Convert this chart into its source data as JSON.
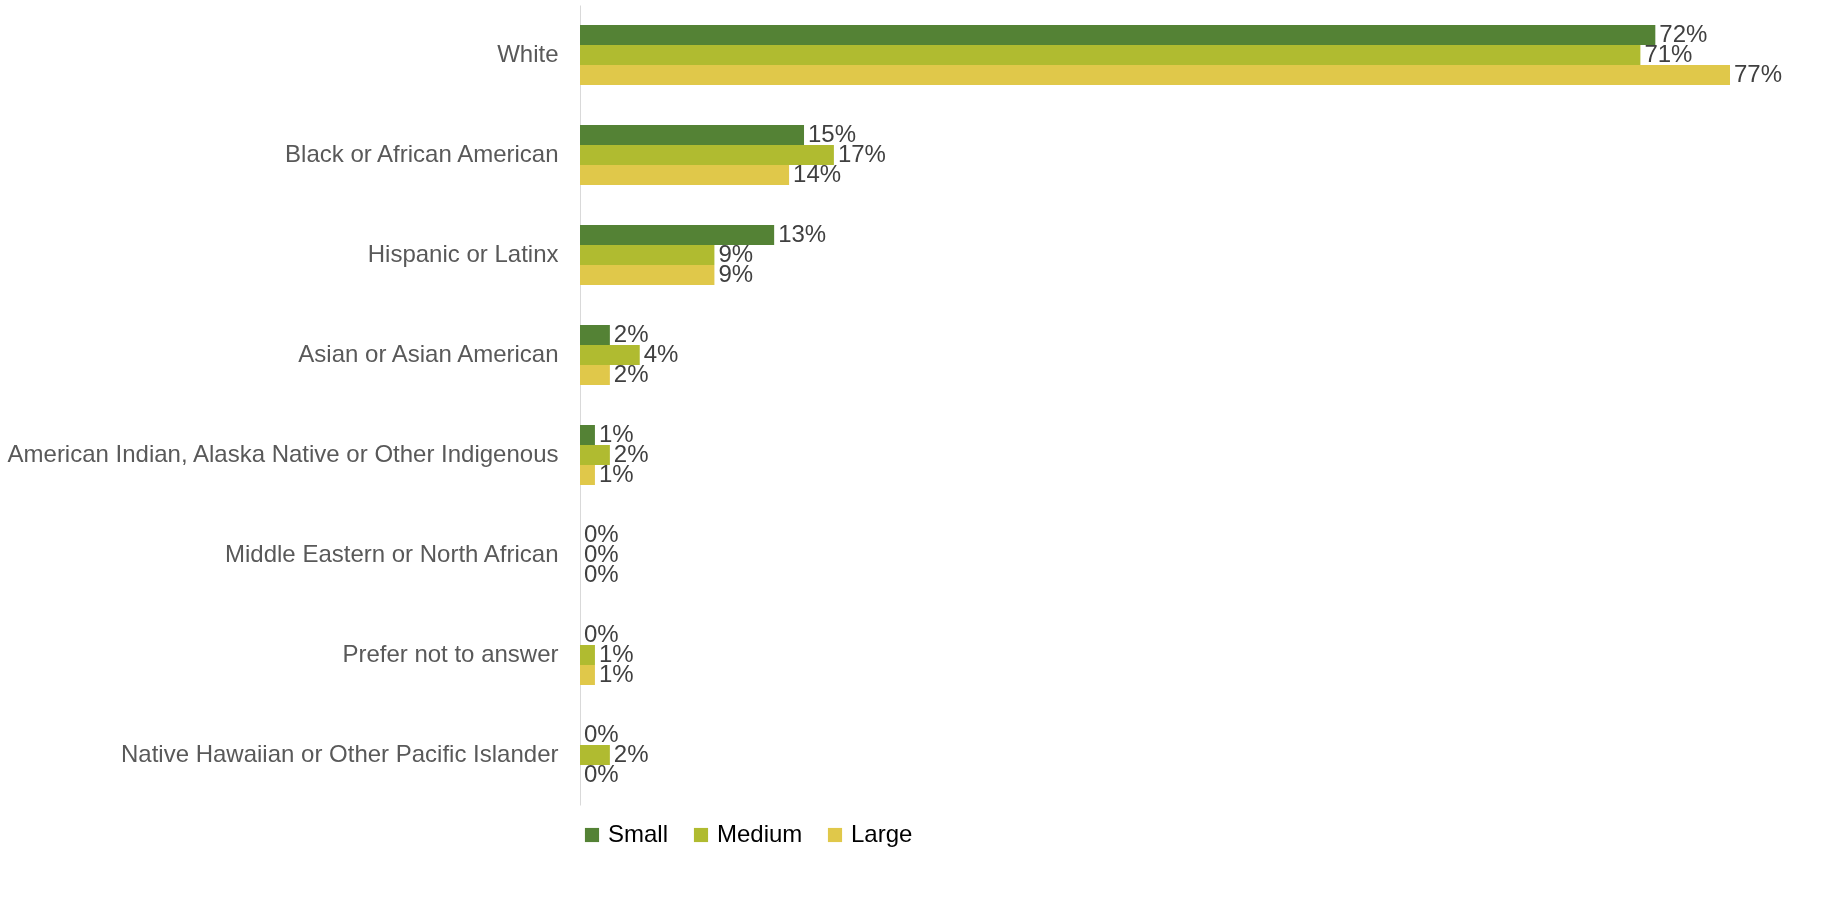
{
  "chart_data": {
    "type": "bar",
    "orientation": "horizontal",
    "categories": [
      "White",
      "Black or African American",
      "Hispanic or Latinx",
      "Asian or Asian American",
      "American Indian, Alaska Native or Other Indigenous",
      "Middle Eastern or North African",
      "Prefer not to answer",
      "Native Hawaiian or Other Pacific Islander"
    ],
    "series": [
      {
        "name": "Small",
        "color": "#548235",
        "values": [
          72,
          15,
          13,
          2,
          1,
          0,
          0,
          0
        ],
        "value_labels": [
          "72%",
          "15%",
          "13%",
          "2%",
          "1%",
          "0%",
          "0%",
          "0%"
        ]
      },
      {
        "name": "Medium",
        "color": "#b0bb30",
        "values": [
          71,
          17,
          9,
          4,
          2,
          0,
          1,
          2
        ],
        "value_labels": [
          "71%",
          "17%",
          "9%",
          "4%",
          "2%",
          "0%",
          "1%",
          "2%"
        ]
      },
      {
        "name": "Large",
        "color": "#e0c84a",
        "values": [
          77,
          14,
          9,
          2,
          1,
          0,
          1,
          0
        ],
        "value_labels": [
          "77%",
          "14%",
          "9%",
          "2%",
          "1%",
          "0%",
          "1%",
          "0%"
        ]
      }
    ],
    "legend": "bottom"
  }
}
